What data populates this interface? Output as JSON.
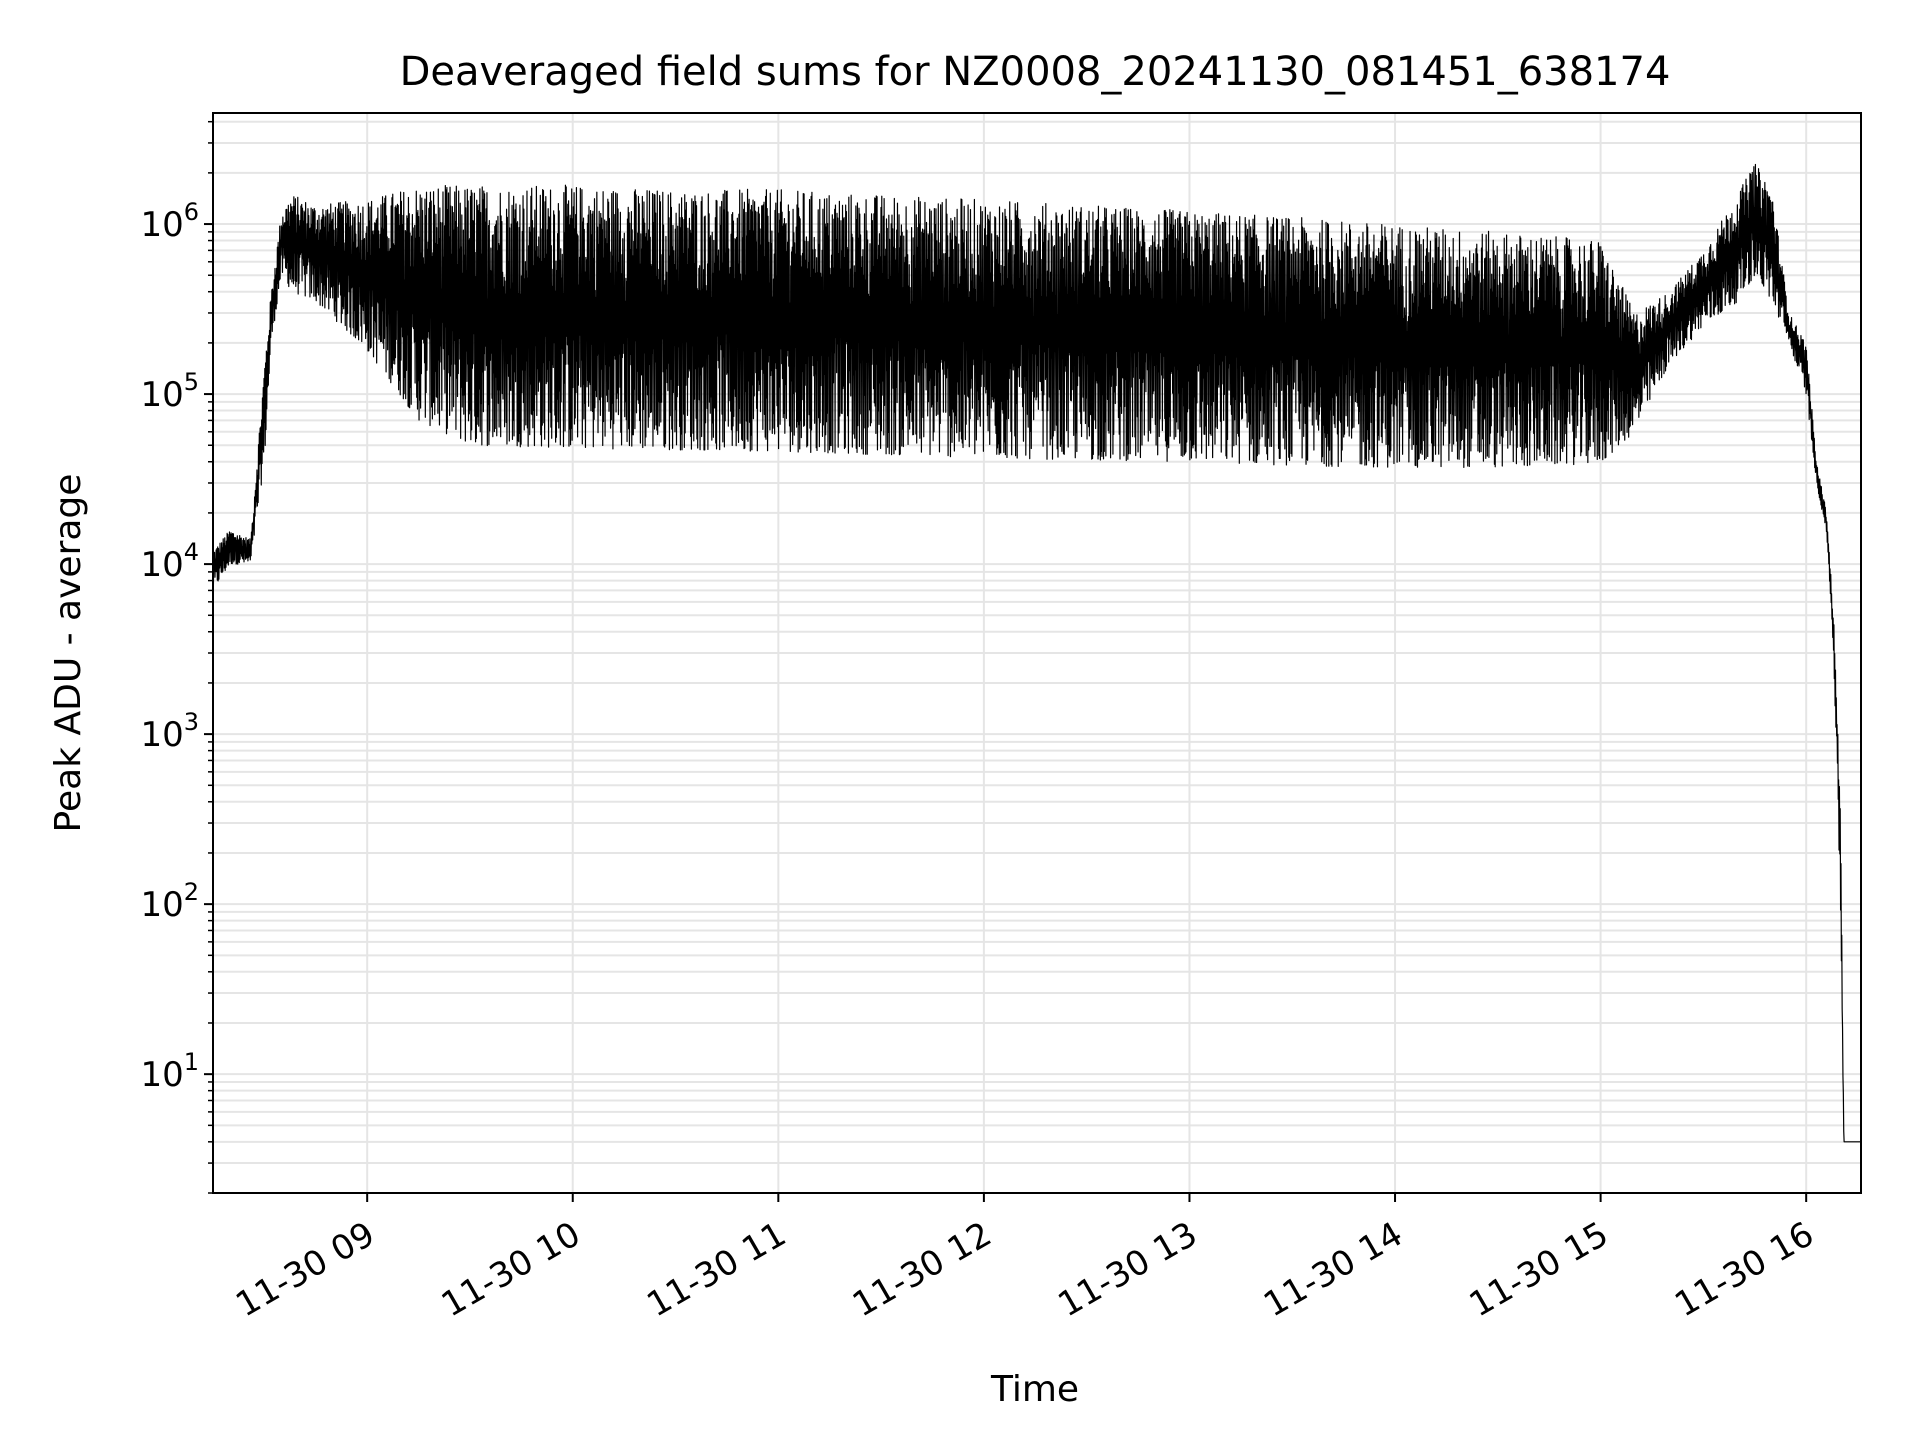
{
  "chart_data": {
    "type": "line",
    "title": "Deaveraged field sums for NZ0008_20241130_081451_638174",
    "xlabel": "Time",
    "ylabel": "Peak ADU - average",
    "yscale": "log",
    "ylim": [
      2,
      4500000
    ],
    "xlim": [
      "2024-11-30 08:15",
      "2024-11-30 16:16"
    ],
    "grid": true,
    "x_ticks": [
      "11-30 09",
      "11-30 10",
      "11-30 11",
      "11-30 12",
      "11-30 13",
      "11-30 14",
      "11-30 15",
      "11-30 16"
    ],
    "x_tick_times": [
      "2024-11-30 09:00",
      "2024-11-30 10:00",
      "2024-11-30 11:00",
      "2024-11-30 12:00",
      "2024-11-30 13:00",
      "2024-11-30 14:00",
      "2024-11-30 15:00",
      "2024-11-30 16:00"
    ],
    "y_ticks": [
      {
        "base": "10",
        "exp": "1",
        "value": 10
      },
      {
        "base": "10",
        "exp": "2",
        "value": 100
      },
      {
        "base": "10",
        "exp": "3",
        "value": 1000
      },
      {
        "base": "10",
        "exp": "4",
        "value": 10000
      },
      {
        "base": "10",
        "exp": "5",
        "value": 100000
      },
      {
        "base": "10",
        "exp": "6",
        "value": 1000000
      }
    ],
    "series": [
      {
        "color": "#000000",
        "envelope": {
          "time": [
            "2024-11-30 08:15",
            "2024-11-30 08:20",
            "2024-11-30 08:26",
            "2024-11-30 08:30",
            "2024-11-30 08:32",
            "2024-11-30 08:35",
            "2024-11-30 08:38",
            "2024-11-30 08:45",
            "2024-11-30 09:00",
            "2024-11-30 09:15",
            "2024-11-30 09:30",
            "2024-11-30 10:00",
            "2024-11-30 10:30",
            "2024-11-30 11:00",
            "2024-11-30 11:30",
            "2024-11-30 12:00",
            "2024-11-30 12:30",
            "2024-11-30 13:00",
            "2024-11-30 13:30",
            "2024-11-30 14:00",
            "2024-11-30 14:30",
            "2024-11-30 15:00",
            "2024-11-30 15:10",
            "2024-11-30 15:20",
            "2024-11-30 15:30",
            "2024-11-30 15:40",
            "2024-11-30 15:45",
            "2024-11-30 15:50",
            "2024-11-30 15:55",
            "2024-11-30 16:00",
            "2024-11-30 16:03",
            "2024-11-30 16:06",
            "2024-11-30 16:08",
            "2024-11-30 16:10",
            "2024-11-30 16:11",
            "2024-11-30 16:12",
            "2024-11-30 16:16"
          ],
          "upper": [
            12000,
            16000,
            14000,
            150000,
            400000,
            1200000,
            1500000,
            1300000,
            1400000,
            1700000,
            1700000,
            1700000,
            1600000,
            1600000,
            1500000,
            1400000,
            1300000,
            1200000,
            1100000,
            1000000,
            900000,
            800000,
            300000,
            400000,
            700000,
            1500000,
            2300000,
            1600000,
            300000,
            200000,
            40000,
            20000,
            5000,
            400,
            4,
            4,
            4
          ],
          "lower": [
            7000,
            10000,
            10000,
            40000,
            200000,
            500000,
            400000,
            350000,
            180000,
            70000,
            50000,
            48000,
            47000,
            46000,
            44000,
            42000,
            41000,
            40000,
            38000,
            37000,
            37000,
            39000,
            60000,
            150000,
            250000,
            350000,
            500000,
            350000,
            200000,
            100000,
            30000,
            15000,
            3000,
            100,
            4,
            4,
            4
          ]
        }
      }
    ]
  }
}
